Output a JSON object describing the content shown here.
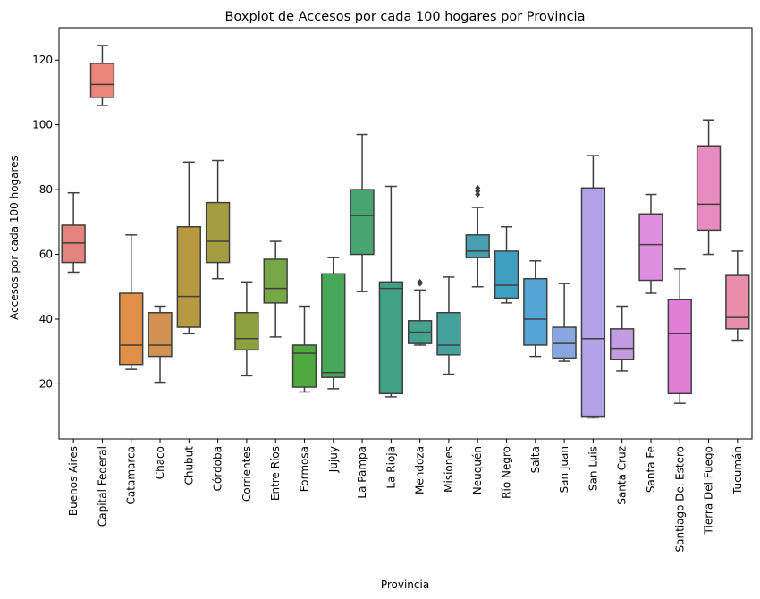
{
  "chart_data": {
    "type": "box",
    "title": "Boxplot de Accesos por cada 100 hogares por Provincia",
    "xlabel": "Provincia",
    "ylabel": "Accesos por cada 100 hogares",
    "ylim": [
      3,
      130
    ],
    "yticks": [
      20,
      40,
      60,
      80,
      100,
      120
    ],
    "grid": false,
    "categories": [
      {
        "name": "Buenos Aires",
        "color": "#e2847c",
        "whisker_low": 54.5,
        "q1": 57.5,
        "median": 63.5,
        "q3": 69,
        "whisker_high": 79,
        "outliers": []
      },
      {
        "name": "Capital Federal",
        "color": "#e98679",
        "whisker_low": 106,
        "q1": 108.5,
        "median": 112.5,
        "q3": 119,
        "whisker_high": 124.5,
        "outliers": []
      },
      {
        "name": "Catamarca",
        "color": "#e18e46",
        "whisker_low": 24.5,
        "q1": 26,
        "median": 32,
        "q3": 48,
        "whisker_high": 66,
        "outliers": []
      },
      {
        "name": "Chaco",
        "color": "#d1934f",
        "whisker_low": 20.5,
        "q1": 28.5,
        "median": 32,
        "q3": 42,
        "whisker_high": 44,
        "outliers": []
      },
      {
        "name": "Chubut",
        "color": "#b7993f",
        "whisker_low": 35.5,
        "q1": 37.5,
        "median": 47,
        "q3": 68.5,
        "whisker_high": 88.5,
        "outliers": []
      },
      {
        "name": "Córdoba",
        "color": "#a49e41",
        "whisker_low": 52.5,
        "q1": 57.5,
        "median": 64,
        "q3": 76,
        "whisker_high": 89,
        "outliers": []
      },
      {
        "name": "Corrientes",
        "color": "#8fa03f",
        "whisker_low": 22.5,
        "q1": 30.5,
        "median": 34,
        "q3": 42,
        "whisker_high": 51.5,
        "outliers": []
      },
      {
        "name": "Entre Ríos",
        "color": "#76a745",
        "whisker_low": 34.5,
        "q1": 45,
        "median": 49.5,
        "q3": 58.5,
        "whisker_high": 64,
        "outliers": []
      },
      {
        "name": "Formosa",
        "color": "#4fa940",
        "whisker_low": 17.5,
        "q1": 19,
        "median": 29.5,
        "q3": 32,
        "whisker_high": 44,
        "outliers": []
      },
      {
        "name": "Jujuy",
        "color": "#47a758",
        "whisker_low": 18.5,
        "q1": 22,
        "median": 23.5,
        "q3": 54,
        "whisker_high": 59,
        "outliers": []
      },
      {
        "name": "La Pampa",
        "color": "#48a56f",
        "whisker_low": 48.5,
        "q1": 60,
        "median": 72,
        "q3": 80,
        "whisker_high": 97,
        "outliers": []
      },
      {
        "name": "La Rioja",
        "color": "#3fa383",
        "whisker_low": 16,
        "q1": 17,
        "median": 49.5,
        "q3": 51.5,
        "whisker_high": 81,
        "outliers": []
      },
      {
        "name": "Mendoza",
        "color": "#46a290",
        "whisker_low": 32,
        "q1": 32.5,
        "median": 36,
        "q3": 39.5,
        "whisker_high": 49,
        "outliers": [
          51,
          51.5
        ]
      },
      {
        "name": "Misiones",
        "color": "#44a29d",
        "whisker_low": 23,
        "q1": 29,
        "median": 32,
        "q3": 42,
        "whisker_high": 53,
        "outliers": []
      },
      {
        "name": "Neuquén",
        "color": "#47a0ae",
        "whisker_low": 50,
        "q1": 59,
        "median": 61,
        "q3": 66,
        "whisker_high": 74.5,
        "outliers": [
          78.5,
          79.5,
          80.5
        ]
      },
      {
        "name": "Río Negro",
        "color": "#3f9fc0",
        "whisker_low": 45,
        "q1": 46.5,
        "median": 50.5,
        "q3": 61,
        "whisker_high": 68.5,
        "outliers": []
      },
      {
        "name": "Salta",
        "color": "#55a4d6",
        "whisker_low": 28.5,
        "q1": 32,
        "median": 40,
        "q3": 52.5,
        "whisker_high": 58,
        "outliers": []
      },
      {
        "name": "San Juan",
        "color": "#88a6e0",
        "whisker_low": 27,
        "q1": 28,
        "median": 32.5,
        "q3": 37.5,
        "whisker_high": 51,
        "outliers": []
      },
      {
        "name": "San Luis",
        "color": "#b3a2e8",
        "whisker_low": 9.5,
        "q1": 10,
        "median": 34,
        "q3": 80.5,
        "whisker_high": 90.5,
        "outliers": []
      },
      {
        "name": "Santa Cruz",
        "color": "#c39be0",
        "whisker_low": 24,
        "q1": 27.5,
        "median": 31,
        "q3": 37,
        "whisker_high": 44,
        "outliers": []
      },
      {
        "name": "Santa Fe",
        "color": "#dd8edf",
        "whisker_low": 48,
        "q1": 52,
        "median": 63,
        "q3": 72.5,
        "whisker_high": 78.5,
        "outliers": []
      },
      {
        "name": "Santiago Del Estero",
        "color": "#e17fd6",
        "whisker_low": 14,
        "q1": 17,
        "median": 35.5,
        "q3": 46,
        "whisker_high": 55.5,
        "outliers": []
      },
      {
        "name": "Tierra Del Fuego",
        "color": "#e88cc0",
        "whisker_low": 60,
        "q1": 67.5,
        "median": 75.5,
        "q3": 93.5,
        "whisker_high": 101.5,
        "outliers": []
      },
      {
        "name": "Tucumán",
        "color": "#ea8da8",
        "whisker_low": 33.5,
        "q1": 37,
        "median": 40.5,
        "q3": 53.5,
        "whisker_high": 61,
        "outliers": []
      }
    ]
  }
}
